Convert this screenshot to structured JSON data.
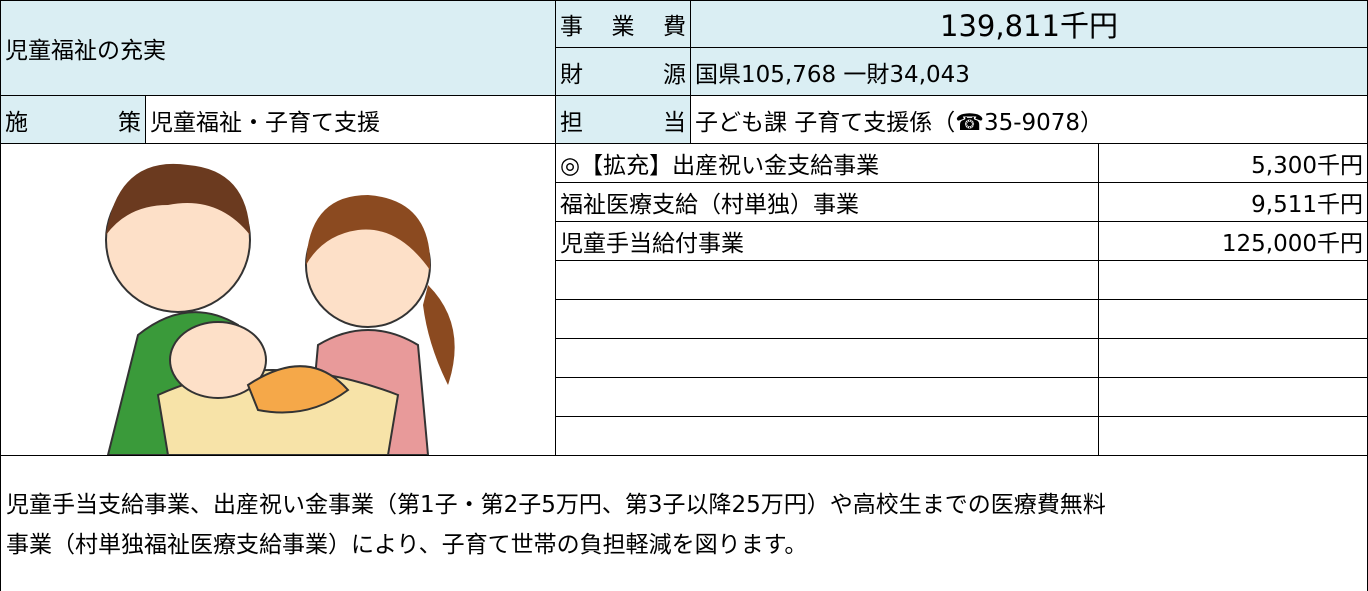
{
  "header": {
    "title": "児童福祉の充実",
    "cost_label": "事業費",
    "cost": "139,811千円",
    "funding_label": "財源",
    "funding": "国県105,768 一財34,043",
    "policy_label": "施策",
    "policy": "児童福祉・子育て支援",
    "charge_label": "担当",
    "charge": "子ども課 子育て支援係（☎35-9078）"
  },
  "projects": [
    [
      "◎【拡充】出産祝い金支給事業",
      "5,300千円"
    ],
    [
      "福祉医療支給（村単独）事業",
      "9,511千円"
    ],
    [
      "児童手当給付事業",
      "125,000千円"
    ]
  ],
  "description": [
    "児童手当支給事業、出産祝い金事業（第1子・第2子5万円、第3子以降25万円）や高校生までの医療費無料",
    "事業（村単独福祉医療支給事業）により、子育て世帯の負担軽減を図ります。"
  ]
}
